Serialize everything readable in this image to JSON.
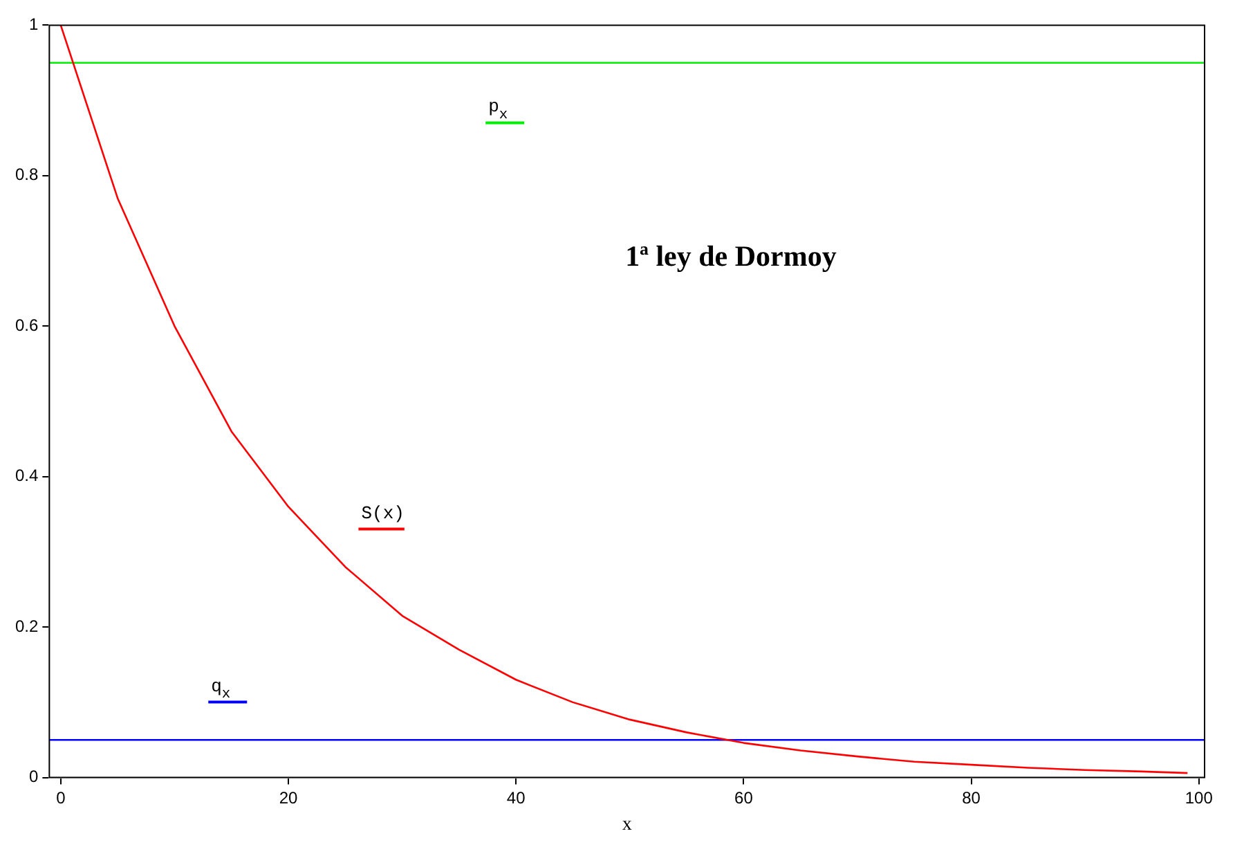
{
  "chart_data": {
    "type": "line",
    "title": "1ª ley de Dormoy",
    "xlabel": "x",
    "xlim": [
      -1,
      100.5
    ],
    "ylim": [
      0,
      1
    ],
    "xticks": [
      0,
      20,
      40,
      60,
      80,
      100
    ],
    "yticks": [
      0,
      0.2,
      0.4,
      0.6,
      0.8,
      1
    ],
    "grid": false,
    "marker": "none",
    "line_style": "solid",
    "series": [
      {
        "name": "S(x)",
        "color": "#ff0000",
        "x": [
          0,
          5,
          10,
          15,
          20,
          25,
          30,
          35,
          40,
          45,
          50,
          55,
          60,
          65,
          70,
          75,
          80,
          85,
          90,
          95,
          99
        ],
        "values": [
          1,
          0.77,
          0.6,
          0.46,
          0.36,
          0.28,
          0.215,
          0.17,
          0.13,
          0.1,
          0.077,
          0.06,
          0.046,
          0.036,
          0.028,
          0.021,
          0.017,
          0.013,
          0.01,
          0.008,
          0.006
        ]
      },
      {
        "name": "p$_{x}$",
        "color": "#00ee00",
        "x": [
          -1,
          100.5
        ],
        "values": [
          0.95,
          0.95
        ]
      },
      {
        "name": "q$_{x}$",
        "color": "#0000ff",
        "x": [
          -1,
          100.5
        ],
        "values": [
          0.05,
          0.05
        ]
      }
    ]
  }
}
